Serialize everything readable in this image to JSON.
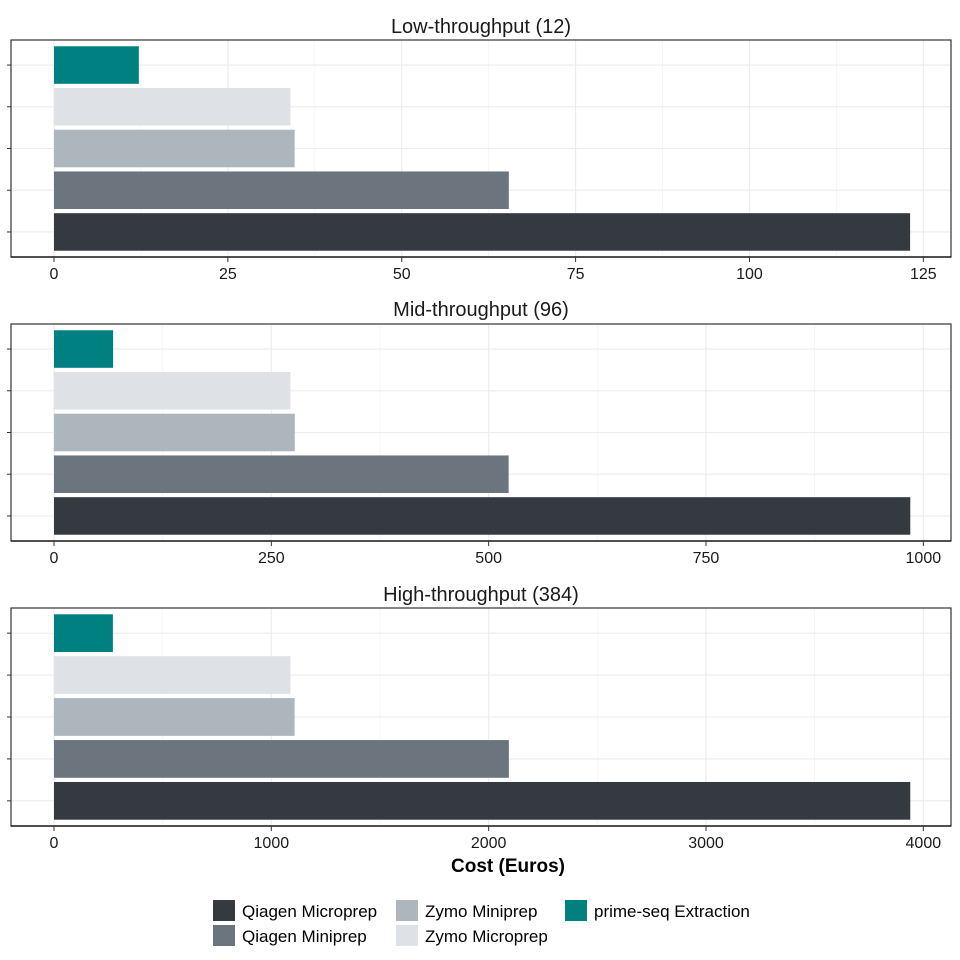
{
  "chart_data": [
    {
      "type": "bar",
      "orientation": "horizontal",
      "title": "Low-throughput (12)",
      "categories": [
        "Qiagen Microprep",
        "Qiagen Miniprep",
        "Zymo Miniprep",
        "Zymo Microprep",
        "prime-seq Extraction"
      ],
      "values": [
        123.1,
        65.4,
        34.6,
        34.0,
        12.2
      ],
      "xlim": [
        0,
        128
      ],
      "xticks": [
        0,
        25,
        50,
        75,
        100,
        125
      ],
      "grid": true
    },
    {
      "type": "bar",
      "orientation": "horizontal",
      "title": "Mid-throughput (96)",
      "categories": [
        "Qiagen Microprep",
        "Qiagen Miniprep",
        "Zymo Miniprep",
        "Zymo Microprep",
        "prime-seq Extraction"
      ],
      "values": [
        985,
        523,
        277,
        272,
        68
      ],
      "xlim": [
        0,
        1024
      ],
      "xticks": [
        0,
        250,
        500,
        750,
        1000
      ],
      "grid": true
    },
    {
      "type": "bar",
      "orientation": "horizontal",
      "title": "High-throughput (384)",
      "categories": [
        "Qiagen Microprep",
        "Qiagen Miniprep",
        "Zymo Miniprep",
        "Zymo Microprep",
        "prime-seq Extraction"
      ],
      "values": [
        3940,
        2093,
        1107,
        1088,
        271
      ],
      "xlim": [
        0,
        4096
      ],
      "xticks": [
        0,
        1000,
        2000,
        3000,
        4000
      ],
      "xlabel": "Cost (Euros)",
      "grid": true
    }
  ],
  "legend": {
    "position": "bottom",
    "items": [
      {
        "label": "Qiagen Microprep",
        "color": "#343a40"
      },
      {
        "label": "Qiagen Miniprep",
        "color": "#6c757d"
      },
      {
        "label": "Zymo Miniprep",
        "color": "#adb5bd"
      },
      {
        "label": "Zymo Microprep",
        "color": "#dee2e6"
      },
      {
        "label": "prime-seq Extraction",
        "color": "#008080"
      }
    ]
  }
}
